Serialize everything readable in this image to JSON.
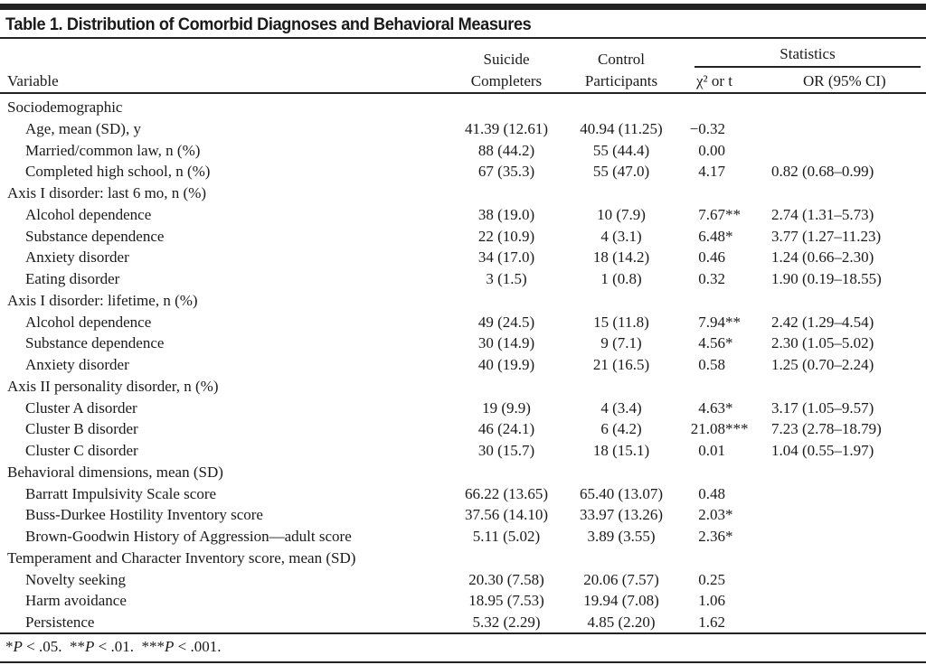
{
  "title": "Table 1. Distribution of Comorbid Diagnoses and Behavioral Measures",
  "headers": {
    "variable": "Variable",
    "suicide_line1": "Suicide",
    "suicide_line2": "Completers",
    "control_line1": "Control",
    "control_line2": "Participants",
    "statistics": "Statistics",
    "chi_t": "χ² or t",
    "or_ci": "OR (95% CI)"
  },
  "rows": [
    {
      "variable": "Sociodemographic",
      "section": true
    },
    {
      "variable": "Age, mean (SD), y",
      "suicide": "41.39 (12.61)",
      "control": "40.94 (11.25)",
      "stat": "−0.32",
      "sig": "",
      "or": ""
    },
    {
      "variable": "Married/common law, n (%)",
      "suicide": "88 (44.2)",
      "control": "55 (44.4)",
      "stat": "0.00",
      "sig": "",
      "or": ""
    },
    {
      "variable": "Completed high school, n (%)",
      "suicide": "67 (35.3)",
      "control": "55 (47.0)",
      "stat": "4.17",
      "sig": "",
      "or": "0.82 (0.68–0.99)"
    },
    {
      "variable": "Axis I disorder: last 6 mo, n (%)",
      "section": true
    },
    {
      "variable": "Alcohol dependence",
      "suicide": "38 (19.0)",
      "control": "10 (7.9)",
      "stat": "7.67",
      "sig": "**",
      "or": "2.74 (1.31–5.73)"
    },
    {
      "variable": "Substance dependence",
      "suicide": "22 (10.9)",
      "control": "4 (3.1)",
      "stat": "6.48",
      "sig": "*",
      "or": "3.77 (1.27–11.23)"
    },
    {
      "variable": "Anxiety disorder",
      "suicide": "34 (17.0)",
      "control": "18 (14.2)",
      "stat": "0.46",
      "sig": "",
      "or": "1.24 (0.66–2.30)"
    },
    {
      "variable": "Eating disorder",
      "suicide": "3 (1.5)",
      "control": "1 (0.8)",
      "stat": "0.32",
      "sig": "",
      "or": "1.90 (0.19–18.55)"
    },
    {
      "variable": "Axis I disorder: lifetime, n (%)",
      "section": true
    },
    {
      "variable": "Alcohol dependence",
      "suicide": "49 (24.5)",
      "control": "15 (11.8)",
      "stat": "7.94",
      "sig": "**",
      "or": "2.42 (1.29–4.54)"
    },
    {
      "variable": "Substance dependence",
      "suicide": "30 (14.9)",
      "control": "9 (7.1)",
      "stat": "4.56",
      "sig": "*",
      "or": "2.30 (1.05–5.02)"
    },
    {
      "variable": "Anxiety disorder",
      "suicide": "40 (19.9)",
      "control": "21 (16.5)",
      "stat": "0.58",
      "sig": "",
      "or": "1.25 (0.70–2.24)"
    },
    {
      "variable": "Axis II personality disorder, n (%)",
      "section": true
    },
    {
      "variable": "Cluster A disorder",
      "suicide": "19 (9.9)",
      "control": "4 (3.4)",
      "stat": "4.63",
      "sig": "*",
      "or": "3.17 (1.05–9.57)"
    },
    {
      "variable": "Cluster B disorder",
      "suicide": "46 (24.1)",
      "control": "6 (4.2)",
      "stat": "21.08",
      "sig": "***",
      "or": "7.23 (2.78–18.79)"
    },
    {
      "variable": "Cluster C disorder",
      "suicide": "30 (15.7)",
      "control": "18 (15.1)",
      "stat": "0.01",
      "sig": "",
      "or": "1.04 (0.55–1.97)"
    },
    {
      "variable": "Behavioral dimensions, mean (SD)",
      "section": true
    },
    {
      "variable": "Barratt Impulsivity Scale score",
      "suicide": "66.22 (13.65)",
      "control": "65.40 (13.07)",
      "stat": "0.48",
      "sig": "",
      "or": ""
    },
    {
      "variable": "Buss-Durkee Hostility Inventory score",
      "suicide": "37.56 (14.10)",
      "control": "33.97 (13.26)",
      "stat": "2.03",
      "sig": "*",
      "or": ""
    },
    {
      "variable": "Brown-Goodwin History of Aggression—adult score",
      "suicide": "5.11 (5.02)",
      "control": "3.89 (3.55)",
      "stat": "2.36",
      "sig": "*",
      "or": ""
    },
    {
      "variable": "Temperament and Character Inventory score, mean (SD)",
      "section": true
    },
    {
      "variable": "Novelty seeking",
      "suicide": "20.30 (7.58)",
      "control": "20.06 (7.57)",
      "stat": "0.25",
      "sig": "",
      "or": ""
    },
    {
      "variable": "Harm avoidance",
      "suicide": "18.95 (7.53)",
      "control": "19.94 (7.08)",
      "stat": "1.06",
      "sig": "",
      "or": ""
    },
    {
      "variable": "Persistence",
      "suicide": "5.32 (2.29)",
      "control": "4.85 (2.20)",
      "stat": "1.62",
      "sig": "",
      "or": ""
    }
  ],
  "footnote": [
    {
      "stars": "*",
      "p": "P",
      "rest": " < .05.  "
    },
    {
      "stars": "**",
      "p": "P",
      "rest": " < .01.  "
    },
    {
      "stars": "***",
      "p": "P",
      "rest": " < .001."
    }
  ]
}
